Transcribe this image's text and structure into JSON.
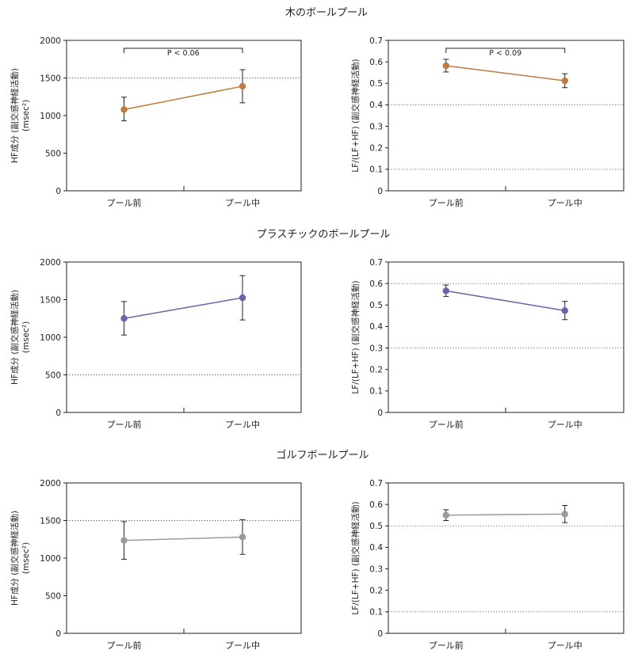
{
  "sections": [
    {
      "title": "木のボールプール"
    },
    {
      "title": "プラスチックのボールプール"
    },
    {
      "title": "ゴルフボールプール"
    }
  ],
  "chart_data": [
    {
      "type": "line",
      "section": "木のボールプール",
      "categories": [
        "プール前",
        "プール中"
      ],
      "ylabel": "HF成分 (副交感神経活動)",
      "ylabel2": "(msec²)",
      "ylim": [
        0,
        2000
      ],
      "yticks": [
        0,
        500,
        1000,
        1500,
        2000
      ],
      "gridlines": [
        1500
      ],
      "color": "#c07a3c",
      "values": [
        1080,
        1390
      ],
      "error_low": [
        930,
        1170
      ],
      "error_high": [
        1245,
        1610
      ],
      "annotation": "P < 0.06"
    },
    {
      "type": "line",
      "section": "木のボールプール",
      "categories": [
        "プール前",
        "プール中"
      ],
      "ylabel": "LF/(LF+HF) (副交感神経活動)",
      "ylim": [
        0,
        0.7
      ],
      "yticks": [
        0,
        0.1,
        0.2,
        0.3,
        0.4,
        0.5,
        0.6,
        0.7
      ],
      "gridlines": [
        0.1,
        0.4
      ],
      "color": "#c07a3c",
      "values": [
        0.582,
        0.512
      ],
      "error_low": [
        0.553,
        0.48
      ],
      "error_high": [
        0.612,
        0.545
      ],
      "annotation": "P < 0.09"
    },
    {
      "type": "line",
      "section": "プラスチックのボールプール",
      "categories": [
        "プール前",
        "プール中"
      ],
      "ylabel": "HF成分 (副交感神経活動)",
      "ylabel2": "(msec²)",
      "ylim": [
        0,
        2000
      ],
      "yticks": [
        0,
        500,
        1000,
        1500,
        2000
      ],
      "gridlines": [
        500
      ],
      "color": "#6e63a8",
      "values": [
        1250,
        1525
      ],
      "error_low": [
        1030,
        1230
      ],
      "error_high": [
        1475,
        1820
      ],
      "annotation": ""
    },
    {
      "type": "line",
      "section": "プラスチックのボールプール",
      "categories": [
        "プール前",
        "プール中"
      ],
      "ylabel": "LF/(LF+HF) (副交感神経活動)",
      "ylim": [
        0,
        0.7
      ],
      "yticks": [
        0,
        0.1,
        0.2,
        0.3,
        0.4,
        0.5,
        0.6,
        0.7
      ],
      "gridlines": [
        0.3,
        0.6
      ],
      "color": "#6e63a8",
      "values": [
        0.566,
        0.474
      ],
      "error_low": [
        0.54,
        0.432
      ],
      "error_high": [
        0.593,
        0.517
      ],
      "annotation": ""
    },
    {
      "type": "line",
      "section": "ゴルフボールプール",
      "categories": [
        "プール前",
        "プール中"
      ],
      "ylabel": "HF成分 (副交感神経活動)",
      "ylabel2": "(msec²)",
      "ylim": [
        0,
        2000
      ],
      "yticks": [
        0,
        500,
        1000,
        1500,
        2000
      ],
      "gridlines": [
        1500
      ],
      "color": "#9a9a9a",
      "values": [
        1235,
        1280
      ],
      "error_low": [
        985,
        1050
      ],
      "error_high": [
        1485,
        1510
      ],
      "annotation": ""
    },
    {
      "type": "line",
      "section": "ゴルフボールプール",
      "categories": [
        "プール前",
        "プール中"
      ],
      "ylabel": "LF/(LF+HF) (副交感神経活動)",
      "ylim": [
        0,
        0.7
      ],
      "yticks": [
        0,
        0.1,
        0.2,
        0.3,
        0.4,
        0.5,
        0.6,
        0.7
      ],
      "gridlines": [
        0.1,
        0.5
      ],
      "color": "#9a9a9a",
      "values": [
        0.55,
        0.555
      ],
      "error_low": [
        0.525,
        0.515
      ],
      "error_high": [
        0.575,
        0.595
      ],
      "annotation": ""
    }
  ]
}
